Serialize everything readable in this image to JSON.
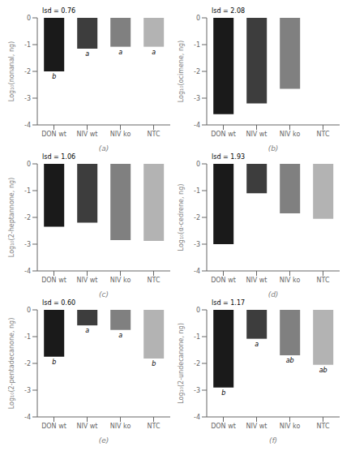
{
  "chart_data": [
    {
      "type": "bar",
      "x_label": "(a)",
      "y_label": "Log₁₀(nonanal, ng)",
      "annotations": [
        "lsd = 0.76"
      ],
      "categories": [
        "DON wt",
        "NIV wt",
        "NIV ko",
        "NTC"
      ],
      "values": [
        -2.0,
        -1.15,
        -1.08,
        -1.08
      ],
      "bar_labels": [
        "b",
        "a",
        "a",
        "a"
      ],
      "colors": [
        "#1a1a1a",
        "#3d3d3d",
        "#808080",
        "#b3b3b3"
      ],
      "ylim": [
        -4,
        0
      ],
      "yticks": [
        -4,
        -3,
        -2,
        -1,
        0
      ]
    },
    {
      "type": "bar",
      "x_label": "(b)",
      "y_label": "Log₁₀(ocimene, ng)",
      "annotations": [
        "lsd = 2.08"
      ],
      "categories": [
        "DON wt",
        "NIV wt",
        "NIV ko",
        "NTC"
      ],
      "values": [
        -3.6,
        -3.2,
        -2.65,
        null
      ],
      "colors": [
        "#1a1a1a",
        "#3d3d3d",
        "#808080",
        "#b3b3b3"
      ],
      "ylim": [
        -4,
        0
      ],
      "yticks": [
        -4,
        -3,
        -2,
        -1,
        0
      ]
    },
    {
      "type": "bar",
      "x_label": "(c)",
      "y_label": "Log₁₀(2-heptannone, ng)",
      "annotations": [
        "lsd = 1.06"
      ],
      "categories": [
        "DON wt",
        "NIV wt",
        "NIV ko",
        "NTC"
      ],
      "values": [
        -2.35,
        -2.2,
        -2.85,
        -2.88
      ],
      "colors": [
        "#1a1a1a",
        "#3d3d3d",
        "#808080",
        "#b3b3b3"
      ],
      "ylim": [
        -4,
        0
      ],
      "yticks": [
        -4,
        -3,
        -2,
        -1,
        0
      ]
    },
    {
      "type": "bar",
      "x_label": "(d)",
      "y_label": "Log₁₀(α-cedrene, ng)",
      "annotations": [
        "lsd = 1.93"
      ],
      "categories": [
        "DON wt",
        "NIV wt",
        "NIV ko",
        "NTC"
      ],
      "values": [
        -3.0,
        -1.1,
        -1.85,
        -2.05
      ],
      "colors": [
        "#1a1a1a",
        "#3d3d3d",
        "#808080",
        "#b3b3b3"
      ],
      "ylim": [
        -4,
        0
      ],
      "yticks": [
        -4,
        -3,
        -2,
        -1,
        0
      ]
    },
    {
      "type": "bar",
      "x_label": "(e)",
      "y_label": "Log₁₀(2-pentadecanone, ng)",
      "annotations": [
        "lsd = 0.60"
      ],
      "categories": [
        "DON wt",
        "NIV wt",
        "NIV ko",
        "NTC"
      ],
      "values": [
        -1.75,
        -0.58,
        -0.75,
        -1.82
      ],
      "bar_labels": [
        "b",
        "a",
        "a",
        "b"
      ],
      "colors": [
        "#1a1a1a",
        "#3d3d3d",
        "#808080",
        "#b3b3b3"
      ],
      "ylim": [
        -4,
        0
      ],
      "yticks": [
        -4,
        -3,
        -2,
        -1,
        0
      ]
    },
    {
      "type": "bar",
      "x_label": "(f)",
      "y_label": "Log₁₀(2-undecanone, ng)",
      "annotations": [
        "lsd = 1.17"
      ],
      "categories": [
        "DON wt",
        "NIV wt",
        "NIV ko",
        "NTC"
      ],
      "values": [
        -2.9,
        -1.08,
        -1.7,
        -2.05
      ],
      "bar_labels": [
        "b",
        "a",
        "ab",
        "ab"
      ],
      "colors": [
        "#1a1a1a",
        "#3d3d3d",
        "#808080",
        "#b3b3b3"
      ],
      "ylim": [
        -4,
        0
      ],
      "yticks": [
        -4,
        -3,
        -2,
        -1,
        0
      ]
    }
  ]
}
